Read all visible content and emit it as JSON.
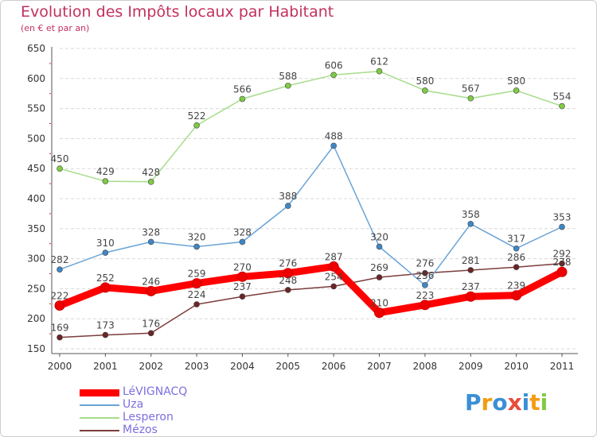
{
  "chart_data": {
    "type": "line",
    "title": "Evolution des Impôts locaux par Habitant",
    "subtitle": "(en € et par an)",
    "xlabel": "",
    "ylabel": "",
    "ylim": [
      150,
      650
    ],
    "yticks": [
      "150",
      "200",
      "250",
      "300",
      "350",
      "400",
      "450",
      "500",
      "550",
      "600",
      "650"
    ],
    "categories": [
      "2000",
      "2001",
      "2002",
      "2003",
      "2004",
      "2005",
      "2006",
      "2007",
      "2008",
      "2009",
      "2010",
      "2011"
    ],
    "grid": "horizontal dashed",
    "legend_position": "bottom-left",
    "series": [
      {
        "name": "LéVIGNACQ",
        "color": "#ff0000",
        "marker": "#ee0000",
        "values": [
          222,
          252,
          246,
          259,
          270,
          276,
          287,
          210,
          223,
          237,
          239,
          278
        ],
        "labels": [
          "222",
          "252",
          "246",
          "259",
          "270",
          "276",
          "287",
          "210",
          "223",
          "237",
          "239",
          "278"
        ]
      },
      {
        "name": "Uza",
        "color": "#6aa3d6",
        "marker": "#3f87c7",
        "values": [
          282,
          310,
          328,
          320,
          328,
          388,
          488,
          320,
          256,
          358,
          317,
          353
        ],
        "labels": [
          "282",
          "310",
          "328",
          "320",
          "328",
          "388",
          "488",
          "320",
          "256",
          "358",
          "317",
          "353"
        ]
      },
      {
        "name": "Lesperon",
        "color": "#a6dd8b",
        "marker": "#7fcb43",
        "values": [
          450,
          429,
          428,
          522,
          566,
          588,
          606,
          612,
          580,
          567,
          580,
          554
        ],
        "labels": [
          "450",
          "429",
          "428",
          "522",
          "566",
          "588",
          "606",
          "612",
          "580",
          "567",
          "580",
          "554"
        ]
      },
      {
        "name": "Mézos",
        "color": "#7c3c3c",
        "marker": "#6b2525",
        "values": [
          169,
          173,
          176,
          224,
          237,
          248,
          254,
          269,
          276,
          281,
          286,
          292
        ],
        "labels": [
          "169",
          "173",
          "176",
          "224",
          "237",
          "248",
          "254",
          "269",
          "276",
          "281",
          "286",
          "292"
        ]
      }
    ]
  },
  "logo": {
    "letters": [
      "P",
      "r",
      "o",
      "x",
      "i",
      "t",
      "i"
    ],
    "colors": [
      "#3a8fd6",
      "#f39c12",
      "#3a8fd6",
      "#e74c3c",
      "#3a8fd6",
      "#f39c12",
      "#7fcb43"
    ]
  }
}
